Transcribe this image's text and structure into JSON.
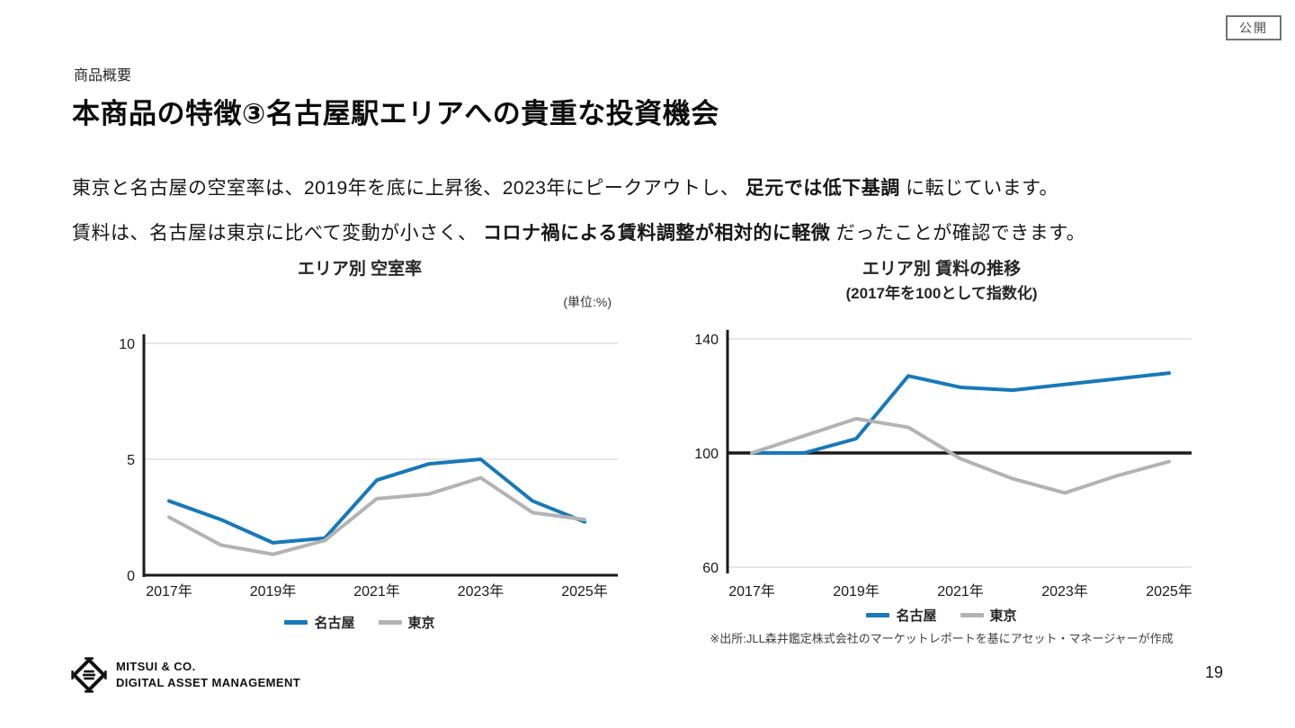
{
  "badge": {
    "label": "公開"
  },
  "header": {
    "eyebrow": "商品概要",
    "title": "本商品の特徴③名古屋駅エリアへの貴重な投資機会"
  },
  "body": {
    "line1": {
      "pre": "東京と名古屋の空室率は、2019年を底に上昇後、2023年にピークアウトし、 ",
      "bold": "足元では低下基調",
      "post": " に転じています。"
    },
    "line2": {
      "pre": "賃料は、名古屋は東京に比べて変動が小さく、 ",
      "bold": "コロナ禍による賃料調整が相対的に軽微",
      "post": " だったことが確認できます。"
    }
  },
  "chart_data": [
    {
      "type": "line",
      "title": "エリア別 空室率",
      "unit_label": "(単位:%)",
      "x": [
        2017,
        2018,
        2019,
        2020,
        2021,
        2022,
        2023,
        2024,
        2025
      ],
      "x_tick_labels": [
        "2017年",
        "2019年",
        "2021年",
        "2023年",
        "2025年"
      ],
      "ylabel": "",
      "ylim": [
        0,
        10
      ],
      "yticks": [
        0,
        5,
        10
      ],
      "grid_values": [
        5,
        10
      ],
      "baseline": null,
      "legend_position": "bottom",
      "series": [
        {
          "name": "名古屋",
          "color": "#1878b8",
          "values": [
            3.2,
            2.4,
            1.4,
            1.6,
            4.1,
            4.8,
            5.0,
            3.2,
            2.3
          ]
        },
        {
          "name": "東京",
          "color": "#b3b3b3",
          "values": [
            2.5,
            1.3,
            0.9,
            1.5,
            3.3,
            3.5,
            4.2,
            2.7,
            2.4
          ]
        }
      ]
    },
    {
      "type": "line",
      "title": "エリア別 賃料の推移",
      "subtitle": "(2017年を100として指数化)",
      "x": [
        2017,
        2018,
        2019,
        2020,
        2021,
        2022,
        2023,
        2024,
        2025
      ],
      "x_tick_labels": [
        "2017年",
        "2019年",
        "2021年",
        "2023年",
        "2025年"
      ],
      "ylabel": "",
      "ylim": [
        60,
        140
      ],
      "yticks": [
        60,
        100,
        140
      ],
      "grid_values": [
        60,
        140
      ],
      "baseline": 100,
      "legend_position": "bottom",
      "series": [
        {
          "name": "名古屋",
          "color": "#1878b8",
          "values": [
            100,
            100,
            105,
            127,
            123,
            122,
            124,
            126,
            128
          ]
        },
        {
          "name": "東京",
          "color": "#b3b3b3",
          "values": [
            100,
            106,
            112,
            109,
            98,
            91,
            86,
            92,
            97
          ]
        }
      ],
      "source": "※出所:JLL森井鑑定株式会社のマーケットレポートを基にアセット・マネージャーが作成"
    }
  ],
  "colors": {
    "nagoya_line": "#1878b8",
    "tokyo_line": "#b3b3b3",
    "gridline": "#dddddd",
    "axis": "#1a1a1a"
  },
  "footer": {
    "logo_line1": "MITSUI & CO.",
    "logo_line2": "DIGITAL ASSET MANAGEMENT",
    "page_number": "19"
  }
}
